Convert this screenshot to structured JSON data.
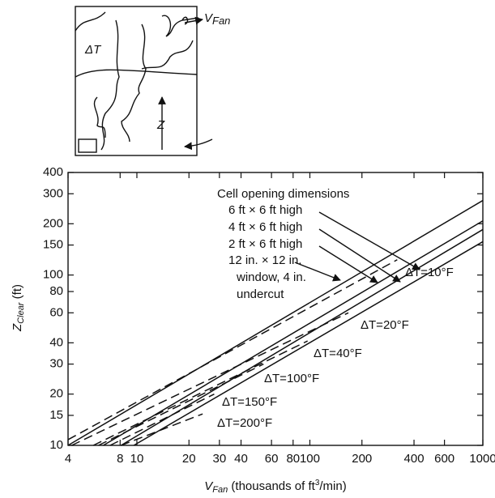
{
  "inset": {
    "delta_t": "ΔT",
    "v": "V",
    "fan": "Fan",
    "z": "Z"
  },
  "chart_data": {
    "type": "line",
    "log_x": true,
    "log_y": true,
    "x_label": [
      "V",
      "Fan",
      " (thousands of ft",
      "3",
      "/min)"
    ],
    "y_label": [
      "Z",
      "Clear",
      " (ft)"
    ],
    "xlim": [
      4,
      1000
    ],
    "ylim": [
      10,
      400
    ],
    "xticks": [
      4,
      8,
      10,
      20,
      30,
      40,
      60,
      80,
      100,
      200,
      400,
      600,
      1000
    ],
    "yticks": [
      10,
      15,
      20,
      30,
      40,
      60,
      80,
      100,
      150,
      200,
      300,
      400
    ],
    "annotations": [
      "Cell opening dimensions",
      "window, 4 in.",
      "undercut"
    ],
    "series": [
      {
        "name": "6 ft × 6 ft high",
        "style": "solid",
        "color": "#111111",
        "x": [
          4,
          1000
        ],
        "values": [
          10,
          274
        ]
      },
      {
        "name": "4 ft × 6 ft high",
        "style": "solid",
        "color": "#111111",
        "x": [
          6.4,
          1000
        ],
        "values": [
          10,
          208
        ]
      },
      {
        "name": "2 ft × 6 ft high",
        "style": "solid",
        "color": "#111111",
        "x": [
          8.1,
          1000
        ],
        "values": [
          10,
          185
        ]
      },
      {
        "name": "12 in. × 12 in.",
        "style": "solid",
        "color": "#111111",
        "x": [
          9.6,
          1000
        ],
        "values": [
          10,
          157
        ]
      },
      {
        "name": "ΔT=10°F",
        "style": "dashed",
        "color": "#111111",
        "x": [
          4,
          320
        ],
        "values": [
          10.8,
          123
        ]
      },
      {
        "name": "ΔT=20°F",
        "style": "dashed",
        "color": "#111111",
        "x": [
          4.2,
          167
        ],
        "values": [
          10,
          60
        ]
      },
      {
        "name": "ΔT=40°F",
        "style": "dashed",
        "color": "#111111",
        "x": [
          5.6,
          97
        ],
        "values": [
          10,
          41
        ]
      },
      {
        "name": "ΔT=100°F",
        "style": "dashed",
        "color": "#111111",
        "x": [
          6,
          54
        ],
        "values": [
          10,
          30
        ]
      },
      {
        "name": "ΔT=150°F",
        "style": "dashed",
        "color": "#111111",
        "x": [
          7,
          28
        ],
        "values": [
          10,
          20
        ]
      },
      {
        "name": "ΔT=200°F",
        "style": "dashed",
        "color": "#111111",
        "x": [
          8.1,
          24
        ],
        "values": [
          10,
          15.3
        ]
      }
    ]
  }
}
